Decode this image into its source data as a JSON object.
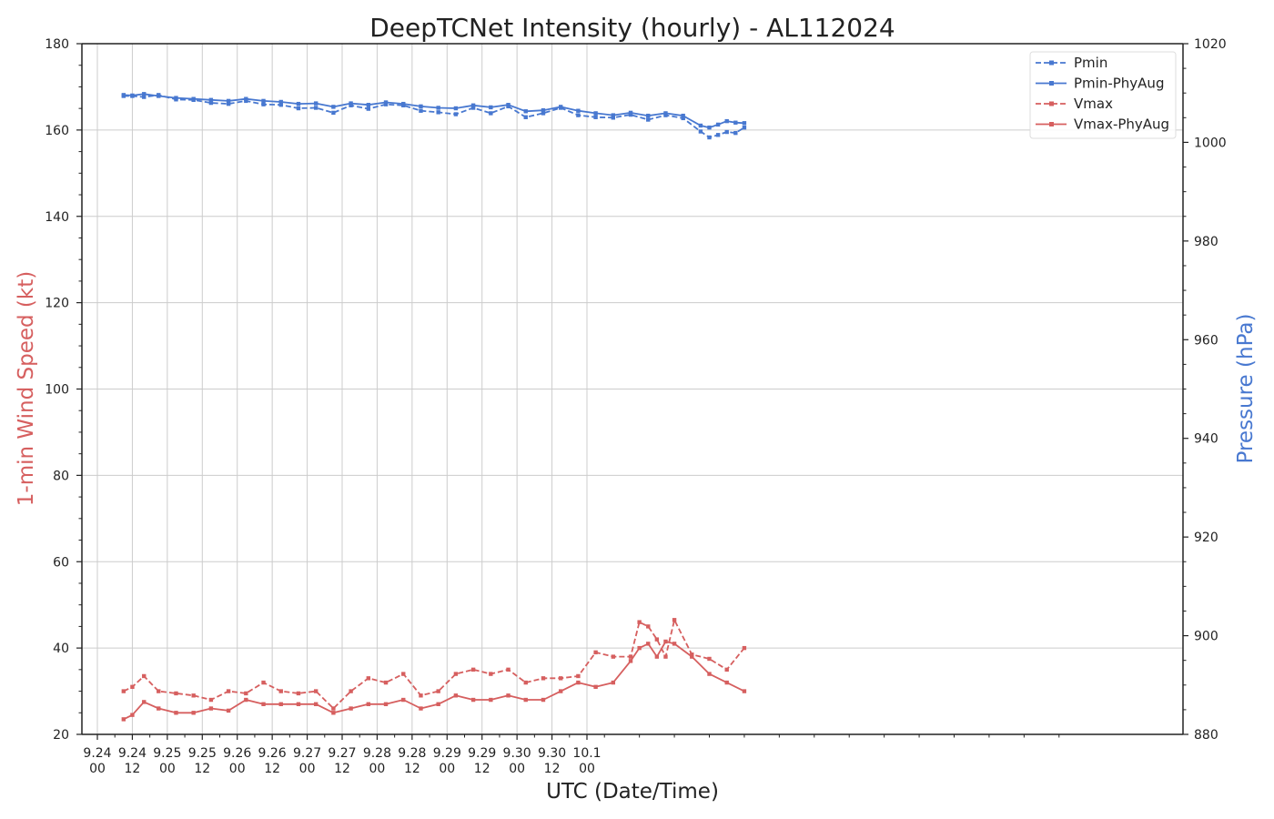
{
  "chart_data": {
    "type": "line",
    "title": "DeepTCNet Intensity (hourly) - AL112024",
    "xlabel": "UTC (Date/Time)",
    "ylabel_left": "1-min Wind Speed (kt)",
    "ylabel_right": "Pressure (hPa)",
    "ylim_left": [
      20,
      180
    ],
    "ylim_right": [
      880,
      1020
    ],
    "x_tick_labels": [
      [
        "9.24",
        "00"
      ],
      [
        "9.24",
        "12"
      ],
      [
        "9.25",
        "00"
      ],
      [
        "9.25",
        "12"
      ],
      [
        "9.26",
        "00"
      ],
      [
        "9.26",
        "12"
      ],
      [
        "9.27",
        "00"
      ],
      [
        "9.27",
        "12"
      ],
      [
        "9.28",
        "00"
      ],
      [
        "9.28",
        "12"
      ],
      [
        "9.29",
        "00"
      ],
      [
        "9.29",
        "12"
      ],
      [
        "9.30",
        "00"
      ],
      [
        "9.30",
        "12"
      ],
      [
        "10.1",
        "00"
      ]
    ],
    "y_ticks_left": [
      20,
      40,
      60,
      80,
      100,
      120,
      140,
      160,
      180
    ],
    "y_ticks_right": [
      880,
      900,
      920,
      940,
      960,
      980,
      1000,
      1020
    ],
    "grid": true,
    "legend_position": "top-right",
    "colors": {
      "vmax": "#d65f5f",
      "pmin": "#4878d0"
    },
    "series": [
      {
        "name": "Pmin",
        "axis": "right",
        "style": "dashed",
        "color": "#4878d0",
        "marker": "square",
        "points": [
          [
            9,
            1009.4
          ],
          [
            12,
            1009.4
          ],
          [
            16,
            1009.2
          ],
          [
            21,
            1009.6
          ],
          [
            27,
            1008.7
          ],
          [
            33,
            1008.6
          ],
          [
            39,
            1008.0
          ],
          [
            45,
            1007.8
          ],
          [
            51,
            1008.4
          ],
          [
            57,
            1007.7
          ],
          [
            63,
            1007.6
          ],
          [
            69,
            1006.9
          ],
          [
            75,
            1007.0
          ],
          [
            81,
            1006.0
          ],
          [
            87,
            1007.5
          ],
          [
            93,
            1006.8
          ],
          [
            99,
            1007.7
          ],
          [
            105,
            1007.5
          ],
          [
            111,
            1006.4
          ],
          [
            117,
            1006.1
          ],
          [
            123,
            1005.7
          ],
          [
            129,
            1007.0
          ],
          [
            135,
            1005.9
          ],
          [
            141,
            1007.3
          ],
          [
            147,
            1005.1
          ],
          [
            153,
            1005.9
          ],
          [
            159,
            1007.0
          ],
          [
            165,
            1005.5
          ],
          [
            171,
            1005.1
          ],
          [
            177,
            1005.0
          ],
          [
            183,
            1005.6
          ],
          [
            189,
            1004.6
          ],
          [
            195,
            1005.5
          ],
          [
            201,
            1004.9
          ],
          [
            207,
            1002.2
          ],
          [
            210,
            1001.0
          ],
          [
            213,
            1001.5
          ],
          [
            216,
            1002.1
          ],
          [
            219,
            1001.9
          ],
          [
            222,
            1003.0
          ]
        ]
      },
      {
        "name": "Pmin-PhyAug",
        "axis": "right",
        "style": "solid",
        "color": "#4878d0",
        "marker": "square",
        "points": [
          [
            9,
            1009.6
          ],
          [
            12,
            1009.5
          ],
          [
            16,
            1009.8
          ],
          [
            21,
            1009.4
          ],
          [
            27,
            1009.0
          ],
          [
            33,
            1008.8
          ],
          [
            39,
            1008.6
          ],
          [
            45,
            1008.4
          ],
          [
            51,
            1008.8
          ],
          [
            57,
            1008.4
          ],
          [
            63,
            1008.2
          ],
          [
            69,
            1007.8
          ],
          [
            75,
            1007.9
          ],
          [
            81,
            1007.2
          ],
          [
            87,
            1007.9
          ],
          [
            93,
            1007.6
          ],
          [
            99,
            1008.1
          ],
          [
            105,
            1007.8
          ],
          [
            111,
            1007.3
          ],
          [
            117,
            1007.0
          ],
          [
            123,
            1006.9
          ],
          [
            129,
            1007.5
          ],
          [
            135,
            1007.1
          ],
          [
            141,
            1007.6
          ],
          [
            147,
            1006.3
          ],
          [
            153,
            1006.5
          ],
          [
            159,
            1007.2
          ],
          [
            165,
            1006.4
          ],
          [
            171,
            1005.9
          ],
          [
            177,
            1005.5
          ],
          [
            183,
            1006.0
          ],
          [
            189,
            1005.4
          ],
          [
            195,
            1005.9
          ],
          [
            201,
            1005.4
          ],
          [
            207,
            1003.4
          ],
          [
            210,
            1003.0
          ],
          [
            213,
            1003.6
          ],
          [
            216,
            1004.3
          ],
          [
            219,
            1004.0
          ],
          [
            222,
            1003.9
          ]
        ]
      },
      {
        "name": "Vmax",
        "axis": "left",
        "style": "dashed",
        "color": "#d65f5f",
        "marker": "square",
        "points": [
          [
            9,
            30
          ],
          [
            12,
            31
          ],
          [
            16,
            33.5
          ],
          [
            21,
            30
          ],
          [
            27,
            29.5
          ],
          [
            33,
            29
          ],
          [
            39,
            28
          ],
          [
            45,
            30
          ],
          [
            51,
            29.5
          ],
          [
            57,
            32
          ],
          [
            63,
            30
          ],
          [
            69,
            29.5
          ],
          [
            75,
            30
          ],
          [
            81,
            26
          ],
          [
            87,
            30
          ],
          [
            93,
            33
          ],
          [
            99,
            32
          ],
          [
            105,
            34
          ],
          [
            111,
            29
          ],
          [
            117,
            30
          ],
          [
            123,
            34
          ],
          [
            129,
            35
          ],
          [
            135,
            34
          ],
          [
            141,
            35
          ],
          [
            147,
            32
          ],
          [
            153,
            33
          ],
          [
            159,
            33
          ],
          [
            165,
            33.5
          ],
          [
            171,
            39
          ],
          [
            177,
            38
          ],
          [
            183,
            38
          ],
          [
            186,
            46
          ],
          [
            189,
            45
          ],
          [
            192,
            42
          ],
          [
            195,
            38
          ],
          [
            198,
            46.5
          ],
          [
            204,
            38.5
          ],
          [
            210,
            37.5
          ],
          [
            216,
            35
          ],
          [
            222,
            40
          ]
        ]
      },
      {
        "name": "Vmax-PhyAug",
        "axis": "left",
        "style": "solid",
        "color": "#d65f5f",
        "marker": "square",
        "points": [
          [
            9,
            23.5
          ],
          [
            12,
            24.5
          ],
          [
            16,
            27.5
          ],
          [
            21,
            26
          ],
          [
            27,
            25
          ],
          [
            33,
            25
          ],
          [
            39,
            26
          ],
          [
            45,
            25.5
          ],
          [
            51,
            28
          ],
          [
            57,
            27
          ],
          [
            63,
            27
          ],
          [
            69,
            27
          ],
          [
            75,
            27
          ],
          [
            81,
            25
          ],
          [
            87,
            26
          ],
          [
            93,
            27
          ],
          [
            99,
            27
          ],
          [
            105,
            28
          ],
          [
            111,
            26
          ],
          [
            117,
            27
          ],
          [
            123,
            29
          ],
          [
            129,
            28
          ],
          [
            135,
            28
          ],
          [
            141,
            29
          ],
          [
            147,
            28
          ],
          [
            153,
            28
          ],
          [
            159,
            30
          ],
          [
            165,
            32
          ],
          [
            171,
            31
          ],
          [
            177,
            32
          ],
          [
            183,
            37
          ],
          [
            186,
            40
          ],
          [
            189,
            41
          ],
          [
            192,
            38
          ],
          [
            195,
            41.5
          ],
          [
            198,
            41
          ],
          [
            204,
            38
          ],
          [
            210,
            34
          ],
          [
            216,
            32
          ],
          [
            222,
            30
          ]
        ]
      }
    ]
  }
}
